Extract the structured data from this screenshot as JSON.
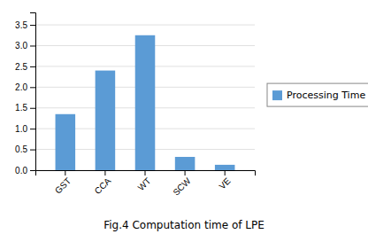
{
  "chart_data": {
    "type": "bar",
    "title": "Fig.4 Computation time of LPE",
    "categories": [
      "GST",
      "CCA",
      "WT",
      "SCW",
      "VE"
    ],
    "series": [
      {
        "name": "Processing Time",
        "color": "#5B9BD5",
        "values": [
          1.35,
          2.4,
          3.25,
          0.32,
          0.13
        ]
      }
    ],
    "ylim": [
      0,
      3.8
    ],
    "yticks": [
      {
        "value": 0,
        "label": "0.0"
      },
      0.5,
      {
        "value": 1.0,
        "label": "1.0"
      },
      1.5,
      {
        "value": 2.0,
        "label": "2.0"
      },
      2.5,
      {
        "value": 3.0,
        "label": "3.0"
      },
      3.5
    ],
    "grid": true,
    "legend": "right"
  }
}
